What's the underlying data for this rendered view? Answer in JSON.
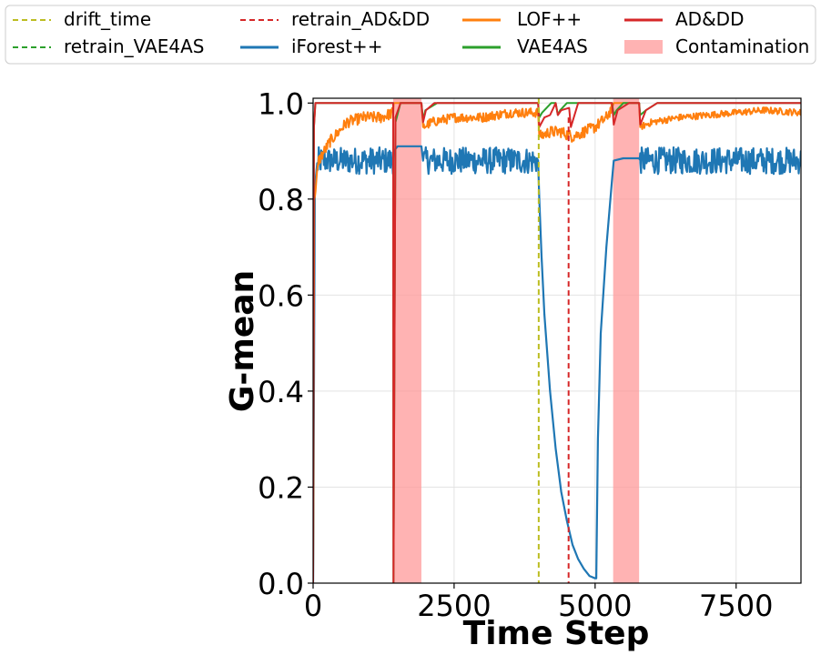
{
  "chart_data": {
    "type": "line",
    "xlabel": "Time Step",
    "ylabel": "G-mean",
    "xlim": [
      0,
      8650
    ],
    "ylim": [
      0,
      1.01
    ],
    "xticks": [
      0,
      2500,
      5000,
      7500
    ],
    "xtick_labels": [
      "0",
      "2500",
      "5000",
      "7500"
    ],
    "yticks": [
      0.0,
      0.2,
      0.4,
      0.6,
      0.8,
      1.0
    ],
    "ytick_labels": [
      "0.0",
      "0.2",
      "0.4",
      "0.6",
      "0.8",
      "1.0"
    ],
    "grid": true,
    "legend_position": "top, outside plot",
    "legend": [
      {
        "label": "drift_time",
        "color": "#bcbd22",
        "style": "dashed"
      },
      {
        "label": "retrain_VAE4AS",
        "color": "#2ca02c",
        "style": "dashed"
      },
      {
        "label": "retrain_AD&DD",
        "color": "#d62728",
        "style": "dashed"
      },
      {
        "label": "iForest++",
        "color": "#1f77b4",
        "style": "solid"
      },
      {
        "label": "LOF++",
        "color": "#ff7f0e",
        "style": "solid"
      },
      {
        "label": "VAE4AS",
        "color": "#2ca02c",
        "style": "solid"
      },
      {
        "label": "AD&DD",
        "color": "#d62728",
        "style": "solid"
      },
      {
        "label": "Contamination",
        "color": "#ff9999",
        "style": "patch"
      }
    ],
    "contamination_spans": [
      [
        1420,
        1920
      ],
      [
        5320,
        5780
      ]
    ],
    "drift_time": [
      4000
    ],
    "retrain_AD_DD": [
      4530
    ],
    "retrain_VAE4AS": [],
    "series": [
      {
        "name": "iForest++",
        "color": "#1f77b4",
        "x": [
          0,
          30,
          60,
          100,
          300,
          600,
          1000,
          1415,
          1430,
          1500,
          1700,
          1920,
          1950,
          2500,
          3000,
          3500,
          3990,
          4010,
          4050,
          4100,
          4200,
          4300,
          4400,
          4500,
          4600,
          4700,
          4800,
          4900,
          5000,
          5020,
          5050,
          5100,
          5200,
          5300,
          5330,
          5500,
          5780,
          5800,
          6500,
          7500,
          8650
        ],
        "values": [
          0.0,
          0.82,
          0.86,
          0.88,
          0.88,
          0.88,
          0.88,
          0.88,
          0.9,
          0.91,
          0.91,
          0.91,
          0.88,
          0.88,
          0.88,
          0.88,
          0.88,
          0.8,
          0.68,
          0.56,
          0.4,
          0.28,
          0.19,
          0.13,
          0.08,
          0.05,
          0.03,
          0.015,
          0.01,
          0.01,
          0.3,
          0.52,
          0.7,
          0.84,
          0.88,
          0.885,
          0.885,
          0.88,
          0.88,
          0.88,
          0.88
        ],
        "noise_ranges": [
          [
            60,
            1420,
            0.028
          ],
          [
            1950,
            3990,
            0.028
          ],
          [
            5790,
            8650,
            0.028
          ]
        ]
      },
      {
        "name": "LOF++",
        "color": "#ff7f0e",
        "x": [
          0,
          20,
          100,
          300,
          600,
          900,
          1200,
          1420,
          1430,
          1920,
          1950,
          2100,
          2500,
          3000,
          3500,
          3990,
          4010,
          4200,
          4400,
          4600,
          4800,
          5000,
          5200,
          5300,
          5330,
          5780,
          5800,
          6000,
          6500,
          7000,
          7500,
          8000,
          8650
        ],
        "values": [
          0.0,
          0.8,
          0.88,
          0.92,
          0.96,
          0.97,
          0.97,
          0.98,
          1.0,
          1.0,
          0.95,
          0.96,
          0.97,
          0.97,
          0.98,
          0.98,
          0.93,
          0.94,
          0.94,
          0.93,
          0.94,
          0.95,
          0.97,
          0.99,
          1.0,
          1.0,
          0.95,
          0.96,
          0.97,
          0.975,
          0.98,
          0.985,
          0.98
        ],
        "noise_ranges": [
          [
            20,
            1420,
            0.012
          ],
          [
            1950,
            3990,
            0.01
          ],
          [
            4010,
            5300,
            0.012
          ],
          [
            5800,
            8650,
            0.007
          ]
        ]
      },
      {
        "name": "VAE4AS",
        "color": "#2ca02c",
        "x": [
          0,
          15,
          40,
          1420,
          1425,
          1460,
          1550,
          1920,
          1950,
          1990,
          2200,
          3990,
          4010,
          4060,
          4220,
          4300,
          4340,
          4380,
          4500,
          5000,
          5300,
          5330,
          5380,
          5500,
          5780,
          5800,
          5900,
          6100,
          8650
        ],
        "values": [
          0.0,
          0.95,
          1.0,
          1.0,
          0.0,
          0.96,
          1.0,
          1.0,
          0.965,
          0.985,
          1.0,
          1.0,
          0.97,
          0.98,
          1.0,
          1.0,
          0.975,
          0.985,
          1.0,
          1.0,
          1.0,
          0.975,
          0.985,
          1.0,
          1.0,
          0.975,
          0.985,
          1.0,
          1.0
        ]
      },
      {
        "name": "AD&DD",
        "color": "#d62728",
        "x": [
          0,
          15,
          40,
          1420,
          1425,
          1460,
          1550,
          1920,
          1950,
          2000,
          2150,
          3990,
          4010,
          4100,
          4200,
          4300,
          4340,
          4400,
          4540,
          4570,
          4700,
          5300,
          5330,
          5400,
          5600,
          5780,
          5800,
          5900,
          6100,
          8650
        ],
        "values": [
          0.0,
          0.95,
          1.0,
          1.0,
          0.0,
          0.97,
          1.0,
          1.0,
          0.96,
          0.985,
          1.0,
          1.0,
          0.95,
          0.97,
          0.975,
          1.0,
          0.975,
          0.985,
          0.99,
          0.95,
          1.0,
          1.0,
          0.955,
          0.985,
          1.0,
          1.0,
          0.955,
          0.985,
          1.0,
          1.0
        ]
      }
    ]
  }
}
